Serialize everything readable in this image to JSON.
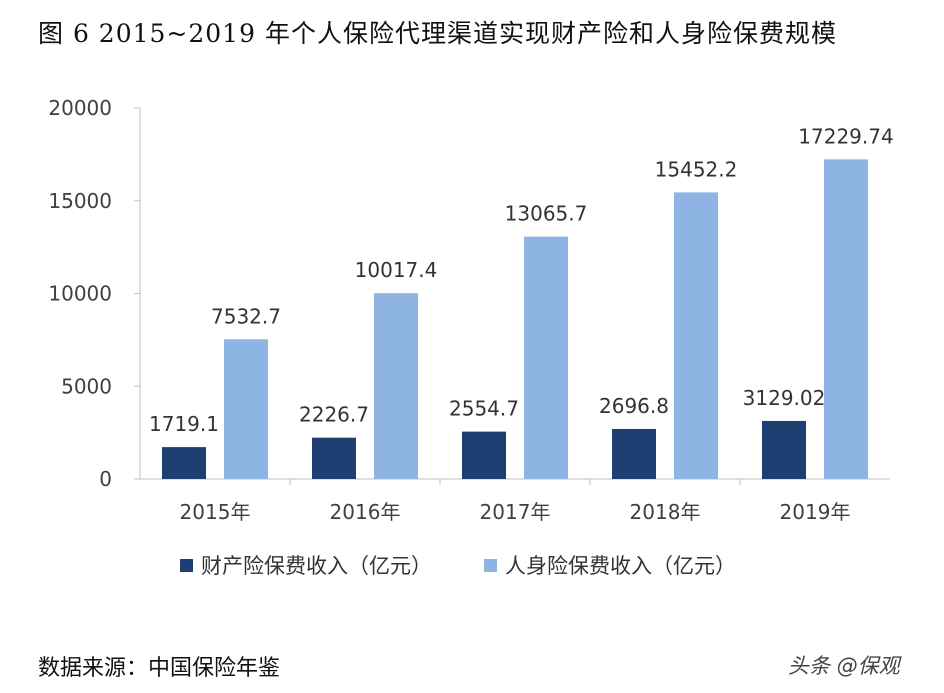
{
  "header": {
    "title": "图 6 2015~2019 年个人保险代理渠道实现财产险和人身险保费规模"
  },
  "footer": {
    "source": "数据来源：中国保险年鉴",
    "watermark": "头条 @保观"
  },
  "colors": {
    "property": "#1f3f73",
    "life": "#8eb4e3",
    "axis": "#bfbfbf",
    "text": "#404040"
  },
  "chart_data": {
    "type": "bar",
    "categories": [
      "2015年",
      "2016年",
      "2017年",
      "2018年",
      "2019年"
    ],
    "series": [
      {
        "name": "财产险保费收入（亿元）",
        "values": [
          1719.1,
          2226.7,
          2554.7,
          2696.8,
          3129.02
        ],
        "labels": [
          "1719.1",
          "2226.7",
          "2554.7",
          "2696.8",
          "3129.02"
        ]
      },
      {
        "name": "人身险保费收入（亿元）",
        "values": [
          7532.7,
          10017.4,
          13065.7,
          15452.2,
          17229.74
        ],
        "labels": [
          "7532.7",
          "10017.4",
          "13065.7",
          "15452.2",
          "17229.74"
        ]
      }
    ],
    "ylim": [
      0,
      20000
    ],
    "yticks": [
      0,
      5000,
      10000,
      15000,
      20000
    ],
    "grid": false,
    "legend": "bottom"
  }
}
